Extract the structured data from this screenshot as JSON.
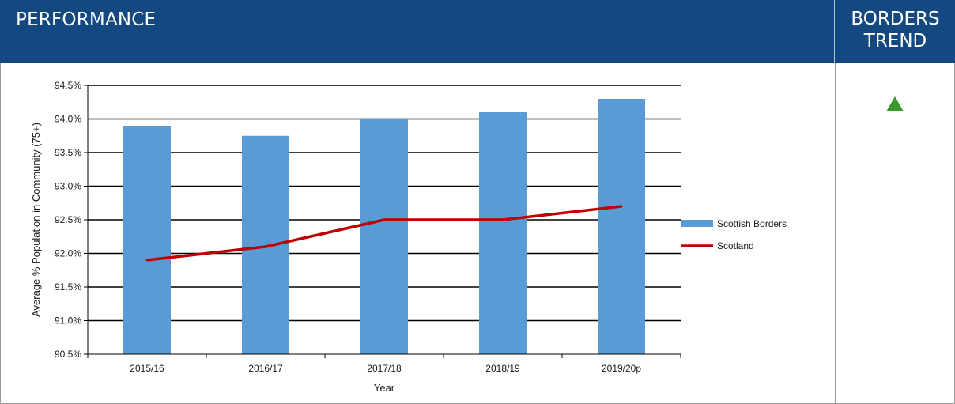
{
  "header": {
    "performance_label": "PERFORMANCE",
    "trend_label_line1": "BORDERS",
    "trend_label_line2": "TREND"
  },
  "trend": {
    "icon": "up-triangle-icon",
    "direction": "up",
    "color": "#3a9a2a"
  },
  "colors": {
    "header_bg": "#144880",
    "bar": "#5b9bd5",
    "line": "#c00000"
  },
  "chart_data": {
    "type": "bar",
    "categories": [
      "2015/16",
      "2016/17",
      "2017/18",
      "2018/19",
      "2019/20p"
    ],
    "series": [
      {
        "name": "Scottish Borders",
        "type": "bar",
        "values": [
          93.9,
          93.75,
          94.0,
          94.1,
          94.3
        ],
        "color": "#5b9bd5"
      },
      {
        "name": "Scotland",
        "type": "line",
        "values": [
          91.9,
          92.1,
          92.5,
          92.5,
          92.7
        ],
        "color": "#c00000"
      }
    ],
    "xlabel": "Year",
    "ylabel": "Average % Population in Community (75+)",
    "ylim": [
      90.5,
      94.5
    ],
    "yticks": [
      "90.5%",
      "91.0%",
      "91.5%",
      "92.0%",
      "92.5%",
      "93.0%",
      "93.5%",
      "94.0%",
      "94.5%"
    ],
    "grid": true,
    "legend": "right"
  }
}
